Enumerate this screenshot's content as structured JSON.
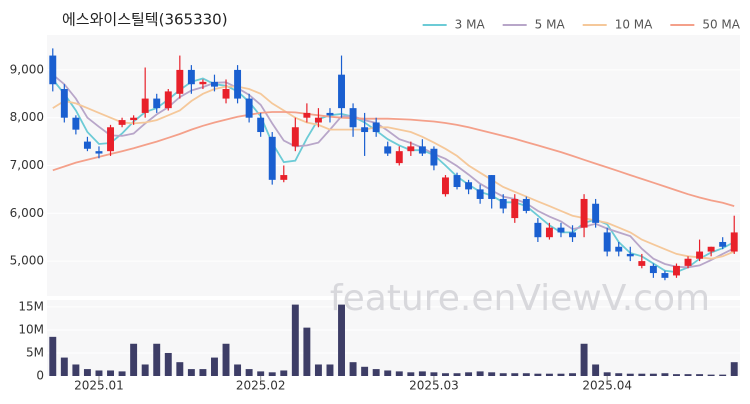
{
  "chart_data": {
    "type": "candlestick",
    "title": "에스와이스틸텍(365330)",
    "watermark": "feature.enViewV.com",
    "legend": "top-right",
    "grid": true,
    "up_color": "#e8202a",
    "down_color": "#1a5fd0",
    "categories": [
      null,
      null,
      null,
      null,
      "2025.01",
      null,
      null,
      null,
      null,
      null,
      null,
      null,
      null,
      null,
      null,
      null,
      null,
      null,
      "2025.02",
      null,
      null,
      null,
      null,
      null,
      null,
      null,
      null,
      null,
      null,
      null,
      null,
      null,
      null,
      "2025.03",
      null,
      null,
      null,
      null,
      null,
      null,
      null,
      null,
      null,
      null,
      null,
      null,
      null,
      null,
      "2025.04",
      null,
      null,
      null,
      null,
      null,
      null,
      null,
      null,
      null,
      null,
      null
    ],
    "open": [
      9300,
      8600,
      8000,
      7500,
      7300,
      7300,
      7850,
      7950,
      8100,
      8400,
      8200,
      8500,
      9000,
      8700,
      8750,
      8400,
      9000,
      8400,
      8000,
      7600,
      6700,
      7400,
      8000,
      7900,
      8100,
      8900,
      8200,
      7800,
      7900,
      7400,
      7050,
      7300,
      7400,
      7350,
      6400,
      6800,
      6650,
      6500,
      6800,
      6300,
      5900,
      6300,
      5800,
      5500,
      5700,
      5600,
      5700,
      6200,
      5600,
      5300,
      5150,
      4900,
      4900,
      4750,
      4700,
      4900,
      5050,
      5200,
      5400,
      5200
    ],
    "high": [
      9450,
      8700,
      8050,
      7600,
      7400,
      7850,
      8000,
      8050,
      9050,
      8500,
      8600,
      9300,
      9100,
      8800,
      8900,
      8800,
      9100,
      8500,
      8100,
      7700,
      7000,
      8000,
      8300,
      8200,
      8200,
      9300,
      8300,
      8100,
      8000,
      7500,
      7400,
      7500,
      7550,
      7400,
      6800,
      6850,
      6700,
      6600,
      6800,
      6400,
      6400,
      6350,
      5900,
      5800,
      5800,
      5750,
      6400,
      6300,
      5700,
      5400,
      5300,
      5150,
      4950,
      4800,
      4950,
      5100,
      5450,
      5300,
      5500,
      5950
    ],
    "low": [
      8550,
      7900,
      7650,
      7300,
      7150,
      7200,
      7800,
      7850,
      8000,
      8100,
      8150,
      8400,
      8500,
      8600,
      8550,
      8300,
      8300,
      7900,
      7600,
      6600,
      6650,
      7300,
      7900,
      7800,
      7900,
      8000,
      7600,
      7200,
      7600,
      7200,
      7000,
      7200,
      7200,
      6900,
      6350,
      6500,
      6400,
      6200,
      6100,
      6000,
      5800,
      6000,
      5400,
      5450,
      5500,
      5400,
      5500,
      5700,
      5100,
      5100,
      5000,
      4850,
      4650,
      4600,
      4650,
      4850,
      5000,
      5100,
      5250,
      5150
    ],
    "close": [
      8700,
      8000,
      7750,
      7350,
      7250,
      7800,
      7950,
      8000,
      8400,
      8200,
      8550,
      9000,
      8700,
      8750,
      8650,
      8600,
      8400,
      8000,
      7700,
      6700,
      6800,
      7800,
      8100,
      8000,
      8050,
      8200,
      7800,
      7700,
      7700,
      7250,
      7300,
      7400,
      7250,
      7000,
      6750,
      6550,
      6500,
      6300,
      6300,
      6100,
      6300,
      6050,
      5500,
      5700,
      5600,
      5500,
      6300,
      5800,
      5200,
      5200,
      5100,
      5000,
      4750,
      4650,
      4900,
      5050,
      5200,
      5300,
      5300,
      5600
    ],
    "ylim": [
      4270,
      9730
    ],
    "yticks": [
      {
        "value": 5000,
        "label": "5,000"
      },
      {
        "value": 6000,
        "label": "6,000"
      },
      {
        "value": 7000,
        "label": "7,000"
      },
      {
        "value": 8000,
        "label": "8,000"
      },
      {
        "value": 9000,
        "label": "9,000"
      }
    ],
    "series": [
      {
        "name": "3 MA",
        "color": "#6ccbd6",
        "values": [
          8800,
          8500,
          8150,
          7700,
          7450,
          7470,
          7670,
          7920,
          8120,
          8200,
          8380,
          8580,
          8750,
          8820,
          8700,
          8670,
          8550,
          8330,
          8030,
          7470,
          7070,
          7100,
          7570,
          7970,
          8050,
          8080,
          8020,
          7900,
          7730,
          7550,
          7420,
          7320,
          7320,
          7220,
          7000,
          6770,
          6600,
          6450,
          6370,
          6230,
          6230,
          6150,
          5950,
          5750,
          5600,
          5600,
          5800,
          5870,
          5770,
          5400,
          5170,
          5100,
          4950,
          4800,
          4770,
          4870,
          5050,
          5180,
          5270,
          5400
        ]
      },
      {
        "name": "5 MA",
        "color": "#b8a6c9",
        "values": [
          8900,
          8700,
          8400,
          8000,
          7810,
          7630,
          7620,
          7670,
          7880,
          8070,
          8220,
          8430,
          8570,
          8640,
          8730,
          8740,
          8620,
          8480,
          8270,
          7880,
          7520,
          7400,
          7420,
          7480,
          7750,
          8030,
          8030,
          7950,
          7890,
          7730,
          7550,
          7470,
          7370,
          7240,
          7140,
          6990,
          6810,
          6620,
          6480,
          6350,
          6300,
          6210,
          6050,
          5930,
          5830,
          5670,
          5720,
          5780,
          5680,
          5600,
          5520,
          5260,
          5050,
          4940,
          4880,
          4870,
          4910,
          5020,
          5150,
          5270
        ]
      },
      {
        "name": "10 MA",
        "color": "#f5c89a",
        "values": [
          8200,
          8350,
          8300,
          8200,
          8100,
          8000,
          7900,
          7880,
          7900,
          7950,
          8050,
          8150,
          8350,
          8500,
          8600,
          8650,
          8650,
          8600,
          8500,
          8300,
          8150,
          8000,
          7900,
          7850,
          7750,
          7750,
          7750,
          7750,
          7800,
          7800,
          7750,
          7700,
          7600,
          7480,
          7350,
          7200,
          7000,
          6850,
          6700,
          6550,
          6450,
          6350,
          6250,
          6150,
          6050,
          5950,
          5900,
          5850,
          5800,
          5700,
          5600,
          5450,
          5350,
          5250,
          5150,
          5100,
          5080,
          5050,
          5100,
          5200
        ]
      },
      {
        "name": "50 MA",
        "color": "#f4a08a",
        "values": [
          6900,
          6980,
          7060,
          7120,
          7180,
          7240,
          7300,
          7360,
          7430,
          7500,
          7580,
          7660,
          7750,
          7830,
          7900,
          7960,
          8020,
          8060,
          8100,
          8120,
          8120,
          8110,
          8080,
          8050,
          8020,
          8000,
          7990,
          7980,
          7980,
          7980,
          7970,
          7960,
          7940,
          7920,
          7890,
          7850,
          7800,
          7740,
          7680,
          7620,
          7560,
          7490,
          7420,
          7350,
          7280,
          7200,
          7120,
          7040,
          6960,
          6880,
          6800,
          6720,
          6640,
          6560,
          6480,
          6400,
          6330,
          6270,
          6220,
          6150
        ]
      }
    ],
    "volume": {
      "color": "#3d3d66",
      "values": [
        8500000,
        4000000,
        2500000,
        1500000,
        1200000,
        1200000,
        1000000,
        7000000,
        2500000,
        7000000,
        5000000,
        3000000,
        1500000,
        1500000,
        4000000,
        7000000,
        2500000,
        1500000,
        1000000,
        800000,
        1200000,
        15500000,
        10500000,
        2500000,
        2500000,
        15500000,
        3000000,
        2000000,
        1500000,
        1200000,
        1000000,
        800000,
        1000000,
        800000,
        600000,
        600000,
        800000,
        1000000,
        800000,
        600000,
        600000,
        600000,
        500000,
        500000,
        500000,
        600000,
        7000000,
        2500000,
        800000,
        600000,
        500000,
        500000,
        500000,
        600000,
        400000,
        400000,
        400000,
        300000,
        300000,
        3000000
      ],
      "ylim": [
        0,
        16500000
      ],
      "yticks": [
        {
          "value": 0,
          "label": "0"
        },
        {
          "value": 5000000,
          "label": "5M"
        },
        {
          "value": 10000000,
          "label": "10M"
        },
        {
          "value": 15000000,
          "label": "15M"
        }
      ]
    }
  }
}
